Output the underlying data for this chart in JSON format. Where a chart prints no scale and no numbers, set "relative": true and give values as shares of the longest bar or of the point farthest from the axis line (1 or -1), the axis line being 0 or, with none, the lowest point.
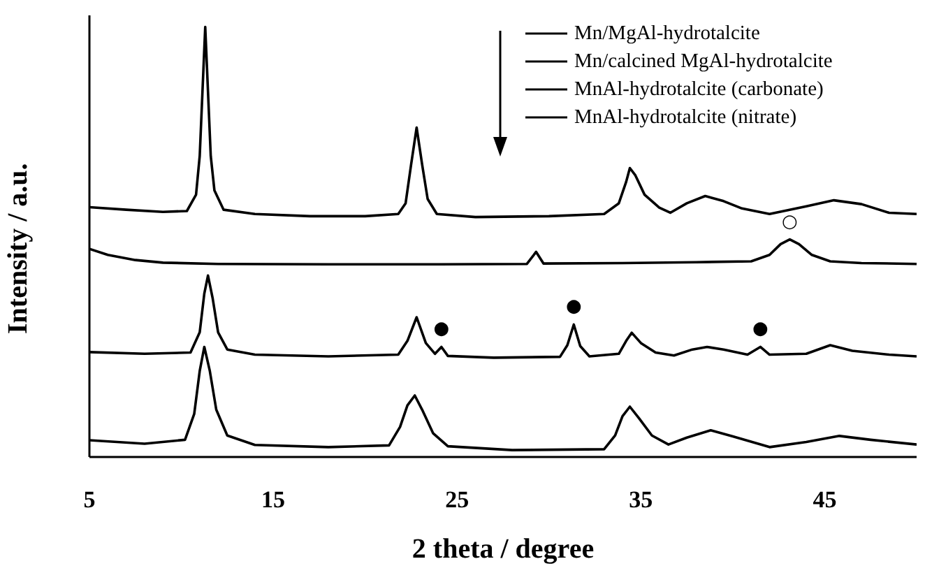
{
  "chart_data": {
    "type": "line",
    "relative": true,
    "xlabel": "2 theta / degree",
    "ylabel": "Intensity / a.u.",
    "xlim": [
      5,
      50
    ],
    "xticks": [
      5,
      15,
      25,
      35,
      45
    ],
    "legend": "top right",
    "grid": false,
    "marker": "none",
    "line_style": "solid",
    "series": [
      {
        "name": "Mn/MgAl-hydrotalcite",
        "color": "#000000",
        "x": [
          5,
          7,
          9,
          10.3,
          10.8,
          11.0,
          11.15,
          11.3,
          11.45,
          11.6,
          11.8,
          12.3,
          14,
          17,
          20,
          21.8,
          22.2,
          22.5,
          22.8,
          23.1,
          23.4,
          23.9,
          26,
          30,
          33,
          33.8,
          34.2,
          34.4,
          34.7,
          35.2,
          36,
          36.6,
          37.5,
          38.5,
          39.5,
          40.5,
          42,
          44,
          45.5,
          47,
          48.5,
          50
        ],
        "values": [
          0.581,
          0.575,
          0.57,
          0.572,
          0.61,
          0.7,
          0.85,
          1.0,
          0.85,
          0.7,
          0.62,
          0.575,
          0.565,
          0.56,
          0.56,
          0.565,
          0.59,
          0.68,
          0.766,
          0.68,
          0.6,
          0.565,
          0.558,
          0.56,
          0.565,
          0.59,
          0.64,
          0.672,
          0.655,
          0.61,
          0.58,
          0.568,
          0.59,
          0.607,
          0.595,
          0.578,
          0.565,
          0.583,
          0.597,
          0.588,
          0.568,
          0.565
        ]
      },
      {
        "name": "Mn/calcined MgAl-hydrotalcite",
        "color": "#000000",
        "x": [
          5,
          6,
          7.5,
          9,
          12,
          18,
          24,
          28.8,
          29.3,
          29.7,
          34,
          38,
          41,
          42,
          42.6,
          43.1,
          43.6,
          44.3,
          45.3,
          47,
          50
        ],
        "values": [
          0.484,
          0.47,
          0.458,
          0.452,
          0.449,
          0.448,
          0.448,
          0.449,
          0.477,
          0.45,
          0.451,
          0.453,
          0.455,
          0.47,
          0.495,
          0.506,
          0.495,
          0.47,
          0.455,
          0.451,
          0.449
        ]
      },
      {
        "name": "MnAl-hydrotalcite (carbonate)",
        "color": "#000000",
        "x": [
          5,
          8,
          10.5,
          11.0,
          11.25,
          11.45,
          11.7,
          12.0,
          12.5,
          14,
          18,
          21.8,
          22.3,
          22.8,
          23.3,
          23.8,
          24.15,
          24.5,
          27,
          30.6,
          31.0,
          31.35,
          31.7,
          32.2,
          33.8,
          34.2,
          34.5,
          35.0,
          35.8,
          36.8,
          37.8,
          38.6,
          39.5,
          40.8,
          41.5,
          42,
          44,
          45.3,
          46.5,
          48.5,
          50
        ],
        "values": [
          0.244,
          0.24,
          0.243,
          0.29,
          0.38,
          0.422,
          0.37,
          0.29,
          0.25,
          0.238,
          0.234,
          0.238,
          0.27,
          0.325,
          0.265,
          0.24,
          0.256,
          0.235,
          0.231,
          0.233,
          0.26,
          0.308,
          0.258,
          0.234,
          0.24,
          0.27,
          0.289,
          0.265,
          0.243,
          0.236,
          0.25,
          0.256,
          0.25,
          0.238,
          0.256,
          0.238,
          0.24,
          0.26,
          0.247,
          0.238,
          0.234
        ]
      },
      {
        "name": "MnAl-hydrotalcite (nitrate)",
        "color": "#000000",
        "x": [
          5,
          8,
          10.2,
          10.7,
          11.0,
          11.25,
          11.55,
          11.9,
          12.5,
          14,
          18,
          21.3,
          21.9,
          22.3,
          22.7,
          23.1,
          23.7,
          24.5,
          28,
          33,
          33.6,
          34.0,
          34.4,
          34.9,
          35.6,
          36.5,
          37.5,
          38.8,
          40,
          42,
          44,
          45.8,
          47.5,
          50
        ],
        "values": [
          0.039,
          0.031,
          0.04,
          0.1,
          0.2,
          0.256,
          0.2,
          0.11,
          0.05,
          0.028,
          0.023,
          0.027,
          0.07,
          0.12,
          0.143,
          0.11,
          0.055,
          0.025,
          0.016,
          0.018,
          0.05,
          0.095,
          0.117,
          0.09,
          0.05,
          0.029,
          0.045,
          0.062,
          0.048,
          0.023,
          0.035,
          0.049,
          0.04,
          0.029
        ]
      }
    ],
    "annotations": [
      {
        "text": "●",
        "x": 24.15,
        "y": 0.256
      },
      {
        "text": "●",
        "x": 31.35,
        "y": 0.308
      },
      {
        "text": "●",
        "x": 41.5,
        "y": 0.256
      },
      {
        "text": "○",
        "x": 43.1,
        "y": 0.506
      }
    ]
  }
}
